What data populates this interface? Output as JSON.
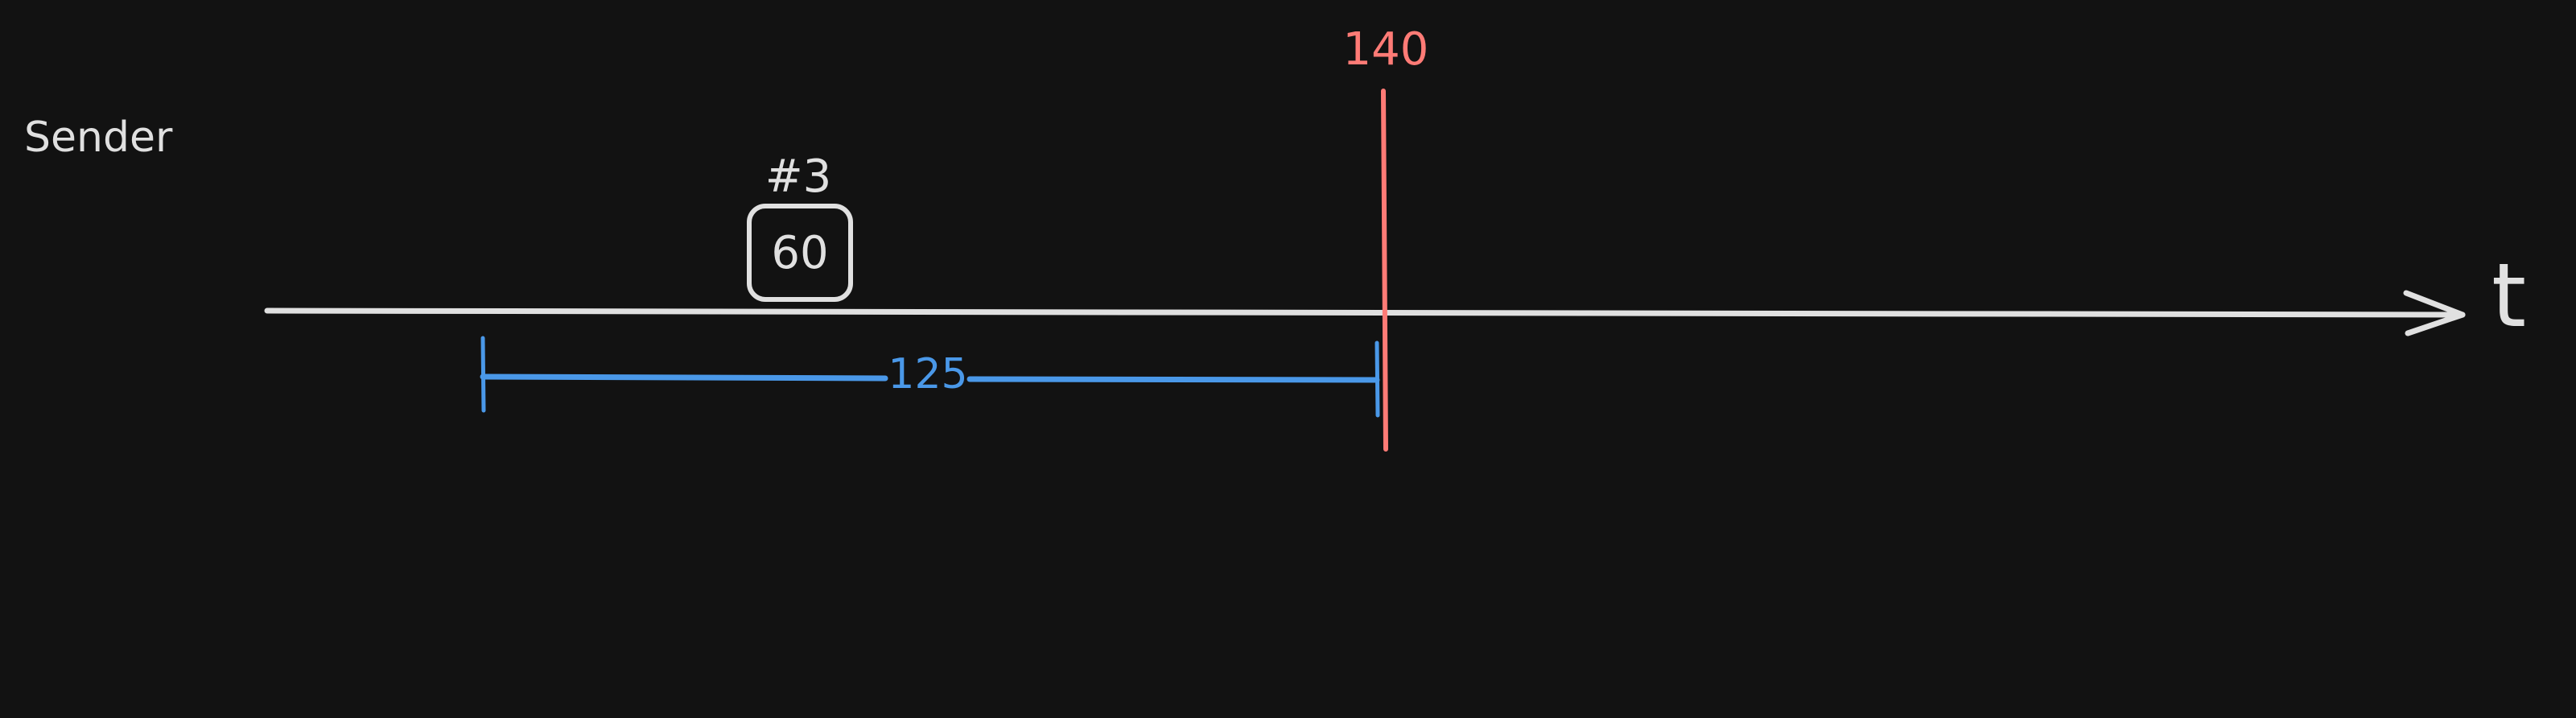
{
  "sender_label": "Sender",
  "time_axis_label": "t",
  "packet": {
    "id_label": "#3",
    "value": "60"
  },
  "marker": {
    "label": "140",
    "color": "#ff7b76"
  },
  "interval": {
    "label": "125",
    "color": "#4a98e8"
  },
  "colors": {
    "background": "#121212",
    "stroke": "#e0e0e0"
  }
}
